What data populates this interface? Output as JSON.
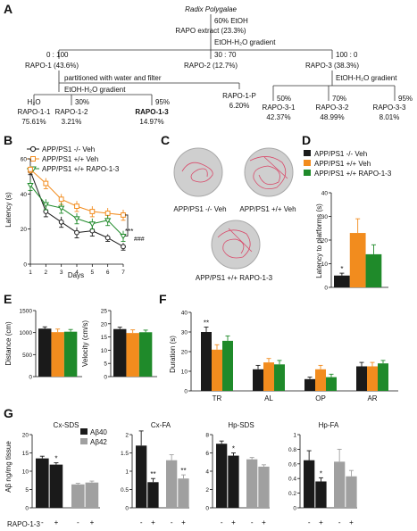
{
  "colors": {
    "ko": "#1a1a1a",
    "veh": "#f28c1e",
    "rapo": "#1f8a2a",
    "gray": "#a0a0a0"
  },
  "panelA": {
    "label": "A",
    "root": "Radix Polygalae",
    "step1": "60% EtOH",
    "extract": "RAPO extract (23.3%)",
    "gradient1": "EtOH-H₂O gradient",
    "ratios": [
      "0 : 100",
      "30 : 70",
      "100 : 0"
    ],
    "fractions": [
      "RAPO-1 (43.6%)",
      "RAPO-2 (12.7%)",
      "RAPO-3 (38.3%)"
    ],
    "partition": "partitioned with water and filter",
    "gradient2": "EtOH-H₂O gradient",
    "gradient3": "EtOH-H₂O gradient",
    "rapo1_pct": [
      "30%",
      "95%"
    ],
    "rapo1_sub": [
      {
        "name": "H₂O",
        "val": ""
      },
      {
        "name": "RAPO-1-1",
        "val": "75.61%"
      },
      {
        "name": "RAPO-1-2",
        "val": "3.21%"
      },
      {
        "name": "RAPO-1-3",
        "val": "14.97%"
      }
    ],
    "rapo1p": {
      "name": "RAPO-1-P",
      "val": "6.20%"
    },
    "rapo3_pct": [
      "50%",
      "70%",
      "95%"
    ],
    "rapo3_sub": [
      {
        "name": "RAPO-3-1",
        "val": "42.37%"
      },
      {
        "name": "RAPO-3-2",
        "val": "48.99%"
      },
      {
        "name": "RAPO-3-3",
        "val": "8.01%"
      }
    ]
  },
  "legend": [
    "APP/PS1 -/- Veh",
    "APP/PS1 +/+ Veh",
    "APP/PS1 +/+ RAPO-1-3"
  ],
  "panelC": {
    "label": "C",
    "captions": [
      "APP/PS1 -/- Veh",
      "APP/PS1 +/+ Veh",
      "APP/PS1 +/+ RAPO-1-3"
    ]
  },
  "labels": {
    "B": "B",
    "D": "D",
    "E": "E",
    "F": "F",
    "G": "G"
  },
  "chart_data": [
    {
      "id": "B",
      "type": "line",
      "xlabel": "Days",
      "ylabel": "Latency (s)",
      "x": [
        1,
        2,
        3,
        4,
        5,
        6,
        7
      ],
      "xlim": [
        1,
        7
      ],
      "ylim": [
        0,
        60
      ],
      "yticks": [
        0,
        20,
        40,
        60
      ],
      "series": [
        {
          "name": "APP/PS1 -/- Veh",
          "values": [
            53,
            30,
            24,
            18,
            19,
            15,
            10
          ],
          "err": [
            2,
            3,
            3,
            3,
            3,
            2,
            2
          ]
        },
        {
          "name": "APP/PS1 +/+ Veh",
          "values": [
            54,
            46,
            37,
            33,
            30,
            29,
            28
          ],
          "err": [
            2,
            3,
            3,
            3,
            3,
            3,
            3
          ]
        },
        {
          "name": "APP/PS1 +/+ RAPO-1-3",
          "values": [
            45,
            34,
            32,
            26,
            23,
            25,
            16
          ],
          "err": [
            3,
            3,
            3,
            3,
            3,
            3,
            3
          ]
        }
      ],
      "annotations": [
        "***",
        "###"
      ]
    },
    {
      "id": "D",
      "type": "bar",
      "ylabel": "Latency to platforms (s)",
      "categories": [
        "APP/PS1 -/- Veh",
        "APP/PS1 +/+ Veh",
        "APP/PS1 +/+ RAPO-1-3"
      ],
      "values": [
        5,
        23,
        14
      ],
      "err": [
        1,
        6,
        4
      ],
      "ylim": [
        0,
        40
      ],
      "yticks": [
        0,
        10,
        20,
        30,
        40
      ],
      "annotations": [
        "*"
      ]
    },
    {
      "id": "E-distance",
      "type": "bar",
      "ylabel": "Distance (cm)",
      "categories": [
        "APP/PS1 -/- Veh",
        "APP/PS1 +/+ Veh",
        "APP/PS1 +/+ RAPO-1-3"
      ],
      "values": [
        1090,
        1010,
        1020
      ],
      "err": [
        40,
        70,
        50
      ],
      "ylim": [
        0,
        1500
      ],
      "yticks": [
        0,
        500,
        1000,
        1500
      ]
    },
    {
      "id": "E-velocity",
      "type": "bar",
      "ylabel": "Velocity (cm/s)",
      "categories": [
        "APP/PS1 -/- Veh",
        "APP/PS1 +/+ Veh",
        "APP/PS1 +/+ RAPO-1-3"
      ],
      "values": [
        18,
        16.5,
        16.8
      ],
      "err": [
        0.7,
        1.2,
        0.8
      ],
      "ylim": [
        0,
        25
      ],
      "yticks": [
        0,
        5,
        10,
        15,
        20,
        25
      ]
    },
    {
      "id": "F",
      "type": "bar",
      "ylabel": "Duration (s)",
      "categories": [
        "TR",
        "AL",
        "OP",
        "AR"
      ],
      "series": [
        {
          "name": "APP/PS1 -/- Veh",
          "values": [
            30,
            11,
            6,
            12.5
          ],
          "err": [
            2.5,
            2,
            1,
            2
          ]
        },
        {
          "name": "APP/PS1 +/+ Veh",
          "values": [
            21,
            14.5,
            11,
            12.5
          ],
          "err": [
            2.5,
            2,
            2,
            2
          ]
        },
        {
          "name": "APP/PS1 +/+ RAPO-1-3",
          "values": [
            25.5,
            13.5,
            7,
            14
          ],
          "err": [
            2.5,
            2,
            1.5,
            1.5
          ]
        }
      ],
      "ylim": [
        0,
        40
      ],
      "yticks": [
        0,
        10,
        20,
        30,
        40
      ],
      "annotations": [
        "**"
      ]
    },
    {
      "id": "G-Cx-SDS",
      "type": "bar",
      "title": "Cx-SDS",
      "ylabel": "Aβ ng/mg tissue",
      "legend": [
        "Aβ40",
        "Aβ42"
      ],
      "xlabel": "RAPO-1-3",
      "groups": [
        "-",
        "+",
        "-",
        "+"
      ],
      "values": [
        13.5,
        11.8,
        6.4,
        6.9
      ],
      "err": [
        0.6,
        0.5,
        0.3,
        0.4
      ],
      "ylim": [
        0,
        20
      ],
      "yticks": [
        0,
        5,
        10,
        15,
        20
      ],
      "annotations": [
        "*"
      ]
    },
    {
      "id": "G-Cx-FA",
      "type": "bar",
      "title": "Cx-FA",
      "groups": [
        "-",
        "+",
        "-",
        "+"
      ],
      "values": [
        1.7,
        0.7,
        1.3,
        0.8
      ],
      "err": [
        0.4,
        0.1,
        0.15,
        0.1
      ],
      "ylim": [
        0,
        2
      ],
      "yticks": [
        0,
        0.5,
        1,
        1.5,
        2
      ],
      "annotations": [
        "**",
        "**"
      ]
    },
    {
      "id": "G-Hp-SDS",
      "type": "bar",
      "title": "Hp-SDS",
      "groups": [
        "-",
        "+",
        "-",
        "+"
      ],
      "values": [
        7,
        5.7,
        5.3,
        4.5
      ],
      "err": [
        0.3,
        0.3,
        0.2,
        0.2
      ],
      "ylim": [
        0,
        8
      ],
      "yticks": [
        0,
        2,
        4,
        6,
        8
      ],
      "annotations": [
        "*"
      ]
    },
    {
      "id": "G-Hp-FA",
      "type": "bar",
      "title": "Hp-FA",
      "groups": [
        "-",
        "+",
        "-",
        "+"
      ],
      "values": [
        0.65,
        0.36,
        0.63,
        0.43
      ],
      "err": [
        0.13,
        0.05,
        0.17,
        0.08
      ],
      "ylim": [
        0,
        1
      ],
      "yticks": [
        0,
        0.2,
        0.4,
        0.6,
        0.8,
        1
      ],
      "annotations": [
        "*"
      ]
    }
  ]
}
